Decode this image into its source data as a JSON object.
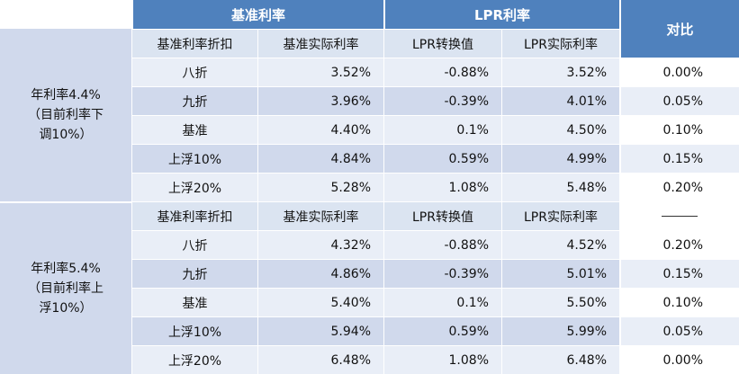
{
  "header": {
    "group1": "基准利率",
    "group2": "LPR利率",
    "compare": "对比"
  },
  "columns": [
    "基准利率折扣",
    "基准实际利率",
    "LPR转换值",
    "LPR实际利率"
  ],
  "sections": [
    {
      "label_lines": [
        "年利率4.4%",
        "（目前利率下",
        "调10%）"
      ],
      "rows": [
        {
          "discount": "八折",
          "base_rate": "3.52%",
          "lpr_conv": "-0.88%",
          "lpr_rate": "3.52%",
          "diff": "0.00%"
        },
        {
          "discount": "九折",
          "base_rate": "3.96%",
          "lpr_conv": "-0.39%",
          "lpr_rate": "4.01%",
          "diff": "0.05%"
        },
        {
          "discount": "基准",
          "base_rate": "4.40%",
          "lpr_conv": "0.1%",
          "lpr_rate": "4.50%",
          "diff": "0.10%"
        },
        {
          "discount": "上浮10%",
          "base_rate": "4.84%",
          "lpr_conv": "0.59%",
          "lpr_rate": "4.99%",
          "diff": "0.15%"
        },
        {
          "discount": "上浮20%",
          "base_rate": "5.28%",
          "lpr_conv": "1.08%",
          "lpr_rate": "5.48%",
          "diff": "0.20%"
        }
      ]
    },
    {
      "label_lines": [
        "年利率5.4%",
        "（目前利率上",
        "浮10%）"
      ],
      "rows": [
        {
          "discount": "八折",
          "base_rate": "4.32%",
          "lpr_conv": "-0.88%",
          "lpr_rate": "4.52%",
          "diff": "0.20%"
        },
        {
          "discount": "九折",
          "base_rate": "4.86%",
          "lpr_conv": "-0.39%",
          "lpr_rate": "5.01%",
          "diff": "0.15%"
        },
        {
          "discount": "基准",
          "base_rate": "5.40%",
          "lpr_conv": "0.1%",
          "lpr_rate": "5.50%",
          "diff": "0.10%"
        },
        {
          "discount": "上浮10%",
          "base_rate": "5.94%",
          "lpr_conv": "0.59%",
          "lpr_rate": "5.99%",
          "diff": "0.05%"
        },
        {
          "discount": "上浮20%",
          "base_rate": "6.48%",
          "lpr_conv": "1.08%",
          "lpr_rate": "6.48%",
          "diff": "0.00%"
        }
      ]
    }
  ],
  "colors": {
    "header_blue": "#4f81bd",
    "row_light": "#e9eef7",
    "row_dark": "#d0d9ec"
  }
}
